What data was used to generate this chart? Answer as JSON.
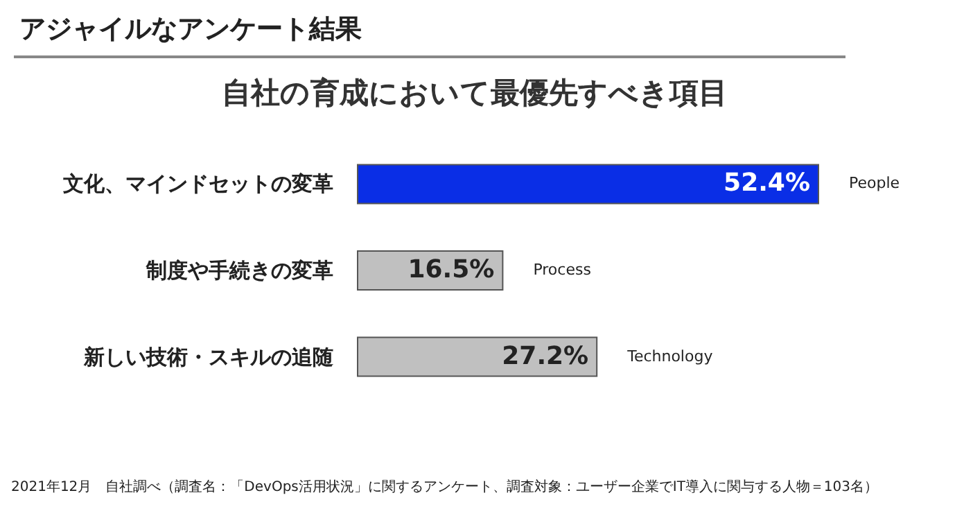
{
  "chart_data": {
    "type": "bar",
    "orientation": "horizontal",
    "title": "アジャイルなアンケート結果",
    "subtitle": "自社の育成において最優先すべき項目",
    "categories": [
      "文化、マインドセットの変革",
      "制度や手続きの変革",
      "新しい技術・スキルの追随"
    ],
    "values": [
      52.4,
      16.5,
      27.2
    ],
    "colors": [
      "#0a2ee6",
      "#c0c0c0",
      "#c0c0c0"
    ],
    "value_labels": [
      "52.4%",
      "16.5%",
      "27.2%"
    ],
    "annotations": [
      "People",
      "Process",
      "Technology",
      "2021年12月　自社調べ（調査名：「DevOps活用状況」に関するアンケート、調査対象：ユーザー企業でIT導入に関与する人物＝103名）"
    ],
    "grid": false
  }
}
